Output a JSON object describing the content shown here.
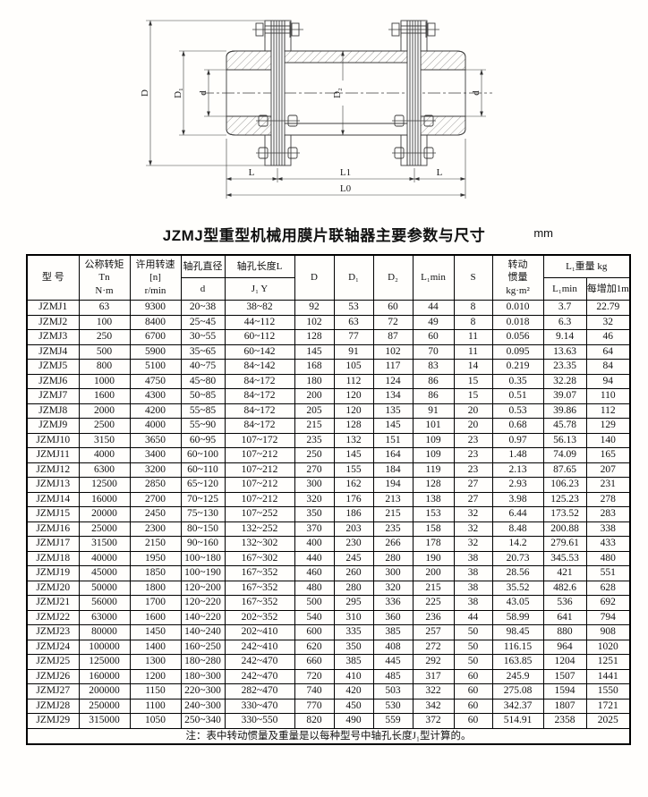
{
  "title": "JZMJ型重型机械用膜片联轴器主要参数与尺寸",
  "unit": "mm",
  "drawing": {
    "labels": {
      "D": "D",
      "D1": "D₁",
      "d_left": "d",
      "D2": "D₂",
      "d_right": "d",
      "L_left": "L",
      "L1": "L1",
      "L_right": "L",
      "L0": "L0"
    }
  },
  "table": {
    "headers": {
      "model": "型 号",
      "torque": "公称转矩\nTn\nN·m",
      "speed": "许用转速\n[n]\nr/min",
      "bore_dia": "轴孔直径",
      "bore_dia_sub": "d",
      "bore_len": "轴孔长度L",
      "bore_len_sub": "J₁  Y",
      "D": "D",
      "D1": "D₁",
      "D2": "D₂",
      "L1min": "L₁min",
      "S": "S",
      "inertia": "转动\n惯量\nkg·m²",
      "weight_group": "L₁重量  kg",
      "weight_l1min": "L₁min",
      "weight_per_m": "每增加1m"
    },
    "rows": [
      [
        "JZMJ1",
        "63",
        "9300",
        "20~38",
        "38~82",
        "92",
        "53",
        "60",
        "44",
        "8",
        "0.010",
        "3.7",
        "22.79"
      ],
      [
        "JZMJ2",
        "100",
        "8400",
        "25~45",
        "44~112",
        "102",
        "63",
        "72",
        "49",
        "8",
        "0.018",
        "6.3",
        "32"
      ],
      [
        "JZMJ3",
        "250",
        "6700",
        "30~55",
        "60~112",
        "128",
        "77",
        "87",
        "60",
        "11",
        "0.056",
        "9.14",
        "46"
      ],
      [
        "JZMJ4",
        "500",
        "5900",
        "35~65",
        "60~142",
        "145",
        "91",
        "102",
        "70",
        "11",
        "0.095",
        "13.63",
        "64"
      ],
      [
        "JZMJ5",
        "800",
        "5100",
        "40~75",
        "84~142",
        "168",
        "105",
        "117",
        "83",
        "14",
        "0.219",
        "23.35",
        "84"
      ],
      [
        "JZMJ6",
        "1000",
        "4750",
        "45~80",
        "84~172",
        "180",
        "112",
        "124",
        "86",
        "15",
        "0.35",
        "32.28",
        "94"
      ],
      [
        "JZMJ7",
        "1600",
        "4300",
        "50~85",
        "84~172",
        "200",
        "120",
        "134",
        "86",
        "15",
        "0.51",
        "39.07",
        "110"
      ],
      [
        "JZMJ8",
        "2000",
        "4200",
        "55~85",
        "84~172",
        "205",
        "120",
        "135",
        "91",
        "20",
        "0.53",
        "39.86",
        "112"
      ],
      [
        "JZMJ9",
        "2500",
        "4000",
        "55~90",
        "84~172",
        "215",
        "128",
        "145",
        "101",
        "20",
        "0.68",
        "45.78",
        "129"
      ],
      [
        "JZMJ10",
        "3150",
        "3650",
        "60~95",
        "107~172",
        "235",
        "132",
        "151",
        "109",
        "23",
        "0.97",
        "56.13",
        "140"
      ],
      [
        "JZMJ11",
        "4000",
        "3400",
        "60~100",
        "107~212",
        "250",
        "145",
        "164",
        "109",
        "23",
        "1.48",
        "74.09",
        "165"
      ],
      [
        "JZMJ12",
        "6300",
        "3200",
        "60~110",
        "107~212",
        "270",
        "155",
        "184",
        "119",
        "23",
        "2.13",
        "87.65",
        "207"
      ],
      [
        "JZMJ13",
        "12500",
        "2850",
        "65~120",
        "107~212",
        "300",
        "162",
        "194",
        "128",
        "27",
        "2.93",
        "106.23",
        "231"
      ],
      [
        "JZMJ14",
        "16000",
        "2700",
        "70~125",
        "107~212",
        "320",
        "176",
        "213",
        "138",
        "27",
        "3.98",
        "125.23",
        "278"
      ],
      [
        "JZMJ15",
        "20000",
        "2450",
        "75~130",
        "107~252",
        "350",
        "186",
        "215",
        "153",
        "32",
        "6.44",
        "173.52",
        "283"
      ],
      [
        "JZMJ16",
        "25000",
        "2300",
        "80~150",
        "132~252",
        "370",
        "203",
        "235",
        "158",
        "32",
        "8.48",
        "200.88",
        "338"
      ],
      [
        "JZMJ17",
        "31500",
        "2150",
        "90~160",
        "132~302",
        "400",
        "230",
        "266",
        "178",
        "32",
        "14.2",
        "279.61",
        "433"
      ],
      [
        "JZMJ18",
        "40000",
        "1950",
        "100~180",
        "167~302",
        "440",
        "245",
        "280",
        "190",
        "38",
        "20.73",
        "345.53",
        "480"
      ],
      [
        "JZMJ19",
        "45000",
        "1850",
        "100~190",
        "167~352",
        "460",
        "260",
        "300",
        "200",
        "38",
        "28.56",
        "421",
        "551"
      ],
      [
        "JZMJ20",
        "50000",
        "1800",
        "120~200",
        "167~352",
        "480",
        "280",
        "320",
        "215",
        "38",
        "35.52",
        "482.6",
        "628"
      ],
      [
        "JZMJ21",
        "56000",
        "1700",
        "120~220",
        "167~352",
        "500",
        "295",
        "336",
        "225",
        "38",
        "43.05",
        "536",
        "692"
      ],
      [
        "JZMJ22",
        "63000",
        "1600",
        "140~220",
        "202~352",
        "540",
        "310",
        "360",
        "236",
        "44",
        "58.99",
        "641",
        "794"
      ],
      [
        "JZMJ23",
        "80000",
        "1450",
        "140~240",
        "202~410",
        "600",
        "335",
        "385",
        "257",
        "50",
        "98.45",
        "880",
        "908"
      ],
      [
        "JZMJ24",
        "100000",
        "1400",
        "160~250",
        "242~410",
        "620",
        "350",
        "408",
        "272",
        "50",
        "116.15",
        "964",
        "1020"
      ],
      [
        "JZMJ25",
        "125000",
        "1300",
        "180~280",
        "242~470",
        "660",
        "385",
        "445",
        "292",
        "50",
        "163.85",
        "1204",
        "1251"
      ],
      [
        "JZMJ26",
        "160000",
        "1200",
        "180~300",
        "242~470",
        "720",
        "410",
        "485",
        "317",
        "60",
        "245.9",
        "1507",
        "1441"
      ],
      [
        "JZMJ27",
        "200000",
        "1150",
        "220~300",
        "282~470",
        "740",
        "420",
        "503",
        "322",
        "60",
        "275.08",
        "1594",
        "1550"
      ],
      [
        "JZMJ28",
        "250000",
        "1100",
        "240~300",
        "330~470",
        "770",
        "450",
        "530",
        "342",
        "60",
        "342.37",
        "1807",
        "1721"
      ],
      [
        "JZMJ29",
        "315000",
        "1050",
        "250~340",
        "330~550",
        "820",
        "490",
        "559",
        "372",
        "60",
        "514.91",
        "2358",
        "2025"
      ]
    ],
    "note": "注：表中转动惯量及重量是以每种型号中轴孔长度J₁型计算的。"
  }
}
